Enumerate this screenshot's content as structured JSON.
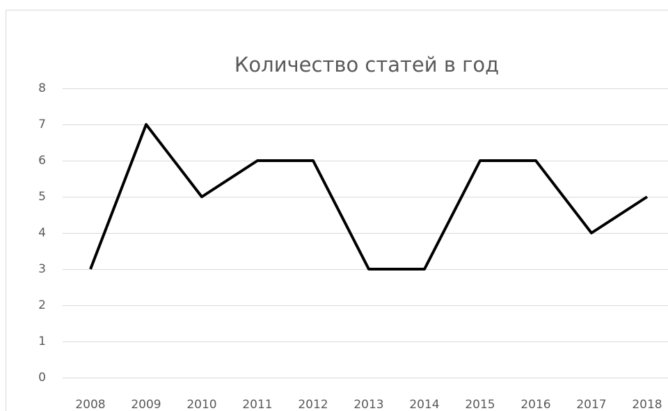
{
  "chart_data": {
    "type": "line",
    "title": "Количество статей в год",
    "categories": [
      "2008",
      "2009",
      "2010",
      "2011",
      "2012",
      "2013",
      "2014",
      "2015",
      "2016",
      "2017",
      "2018"
    ],
    "values": [
      3,
      7,
      5,
      6,
      6,
      3,
      3,
      6,
      6,
      4,
      5
    ],
    "color": "#000000",
    "ylim": [
      0,
      8
    ],
    "yticks": [
      0,
      1,
      2,
      3,
      4,
      5,
      6,
      7,
      8
    ],
    "grid": true
  }
}
